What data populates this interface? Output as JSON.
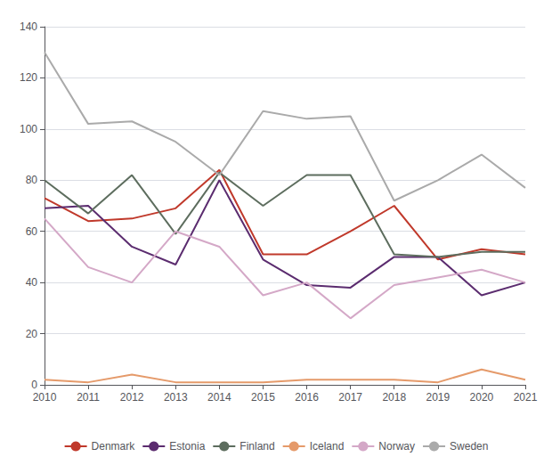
{
  "chart_data": {
    "type": "line",
    "x": [
      2010,
      2011,
      2012,
      2013,
      2014,
      2015,
      2016,
      2017,
      2018,
      2019,
      2020,
      2021
    ],
    "xlim": [
      2010,
      2021
    ],
    "xticks": [
      2010,
      2011,
      2012,
      2013,
      2014,
      2015,
      2016,
      2017,
      2018,
      2019,
      2020,
      2021
    ],
    "ylim": [
      0,
      140
    ],
    "yticks": [
      0,
      20,
      40,
      60,
      80,
      100,
      120,
      140
    ],
    "grid": true,
    "legend": "bottom",
    "series": [
      {
        "name": "Denmark",
        "color": "#C0392B",
        "values": [
          73,
          64,
          65,
          69,
          84,
          51,
          51,
          60,
          70,
          49,
          53,
          51
        ]
      },
      {
        "name": "Estonia",
        "color": "#5B2C6F",
        "values": [
          69,
          70,
          54,
          47,
          80,
          49,
          39,
          38,
          50,
          50,
          35,
          40
        ]
      },
      {
        "name": "Finland",
        "color": "#5D6D5E",
        "values": [
          80,
          67,
          82,
          59,
          83,
          70,
          82,
          82,
          51,
          50,
          52,
          52
        ]
      },
      {
        "name": "Iceland",
        "color": "#E59A6A",
        "values": [
          2,
          1,
          4,
          1,
          1,
          1,
          2,
          2,
          2,
          1,
          6,
          2
        ]
      },
      {
        "name": "Norway",
        "color": "#D4A8C7",
        "values": [
          65,
          46,
          40,
          60,
          54,
          35,
          40,
          26,
          39,
          42,
          45,
          40
        ]
      },
      {
        "name": "Sweden",
        "color": "#AAAAAA",
        "values": [
          130,
          102,
          103,
          95,
          82,
          107,
          104,
          105,
          72,
          80,
          90,
          77
        ]
      }
    ]
  }
}
